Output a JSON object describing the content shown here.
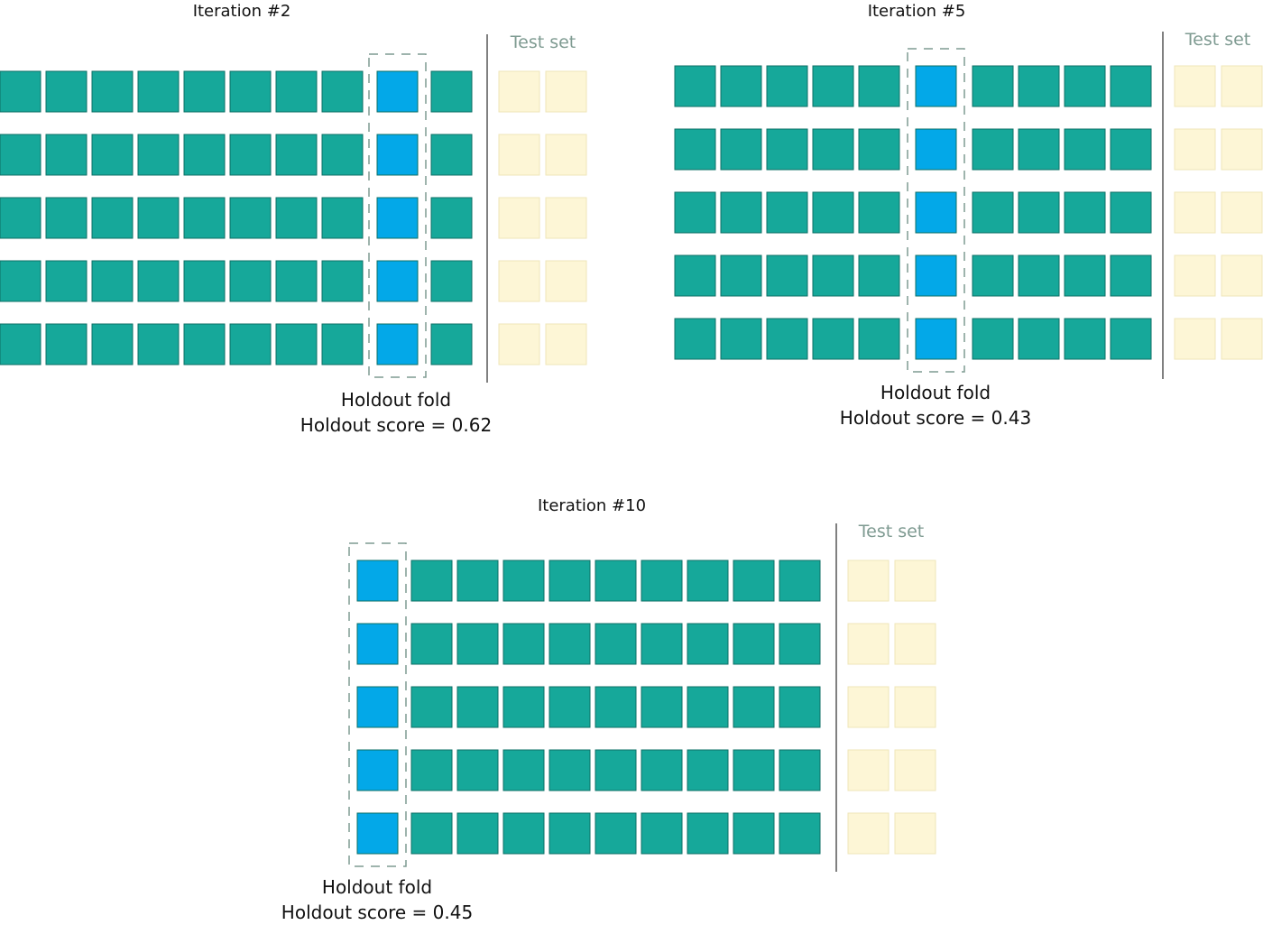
{
  "colors": {
    "train": "#16a89a",
    "holdout": "#03a8e8",
    "test": "#fdf6d6",
    "divider": "#808080",
    "dashed_box": "#7f9b92"
  },
  "panels": [
    {
      "title": "Iteration #2",
      "test_label": "Test set",
      "holdout_label": "Holdout fold",
      "score_label": "Holdout score = 0.62",
      "folds": 10,
      "holdout_fold": 9,
      "rows": 5,
      "test_blocks": 2
    },
    {
      "title": "Iteration #5",
      "test_label": "Test set",
      "holdout_label": "Holdout fold",
      "score_label": "Holdout score = 0.43",
      "folds": 10,
      "holdout_fold": 6,
      "rows": 5,
      "test_blocks": 2
    },
    {
      "title": "Iteration #10",
      "test_label": "Test set",
      "holdout_label": "Holdout fold",
      "score_label": "Holdout score = 0.45",
      "folds": 10,
      "holdout_fold": 1,
      "rows": 5,
      "test_blocks": 2
    }
  ]
}
